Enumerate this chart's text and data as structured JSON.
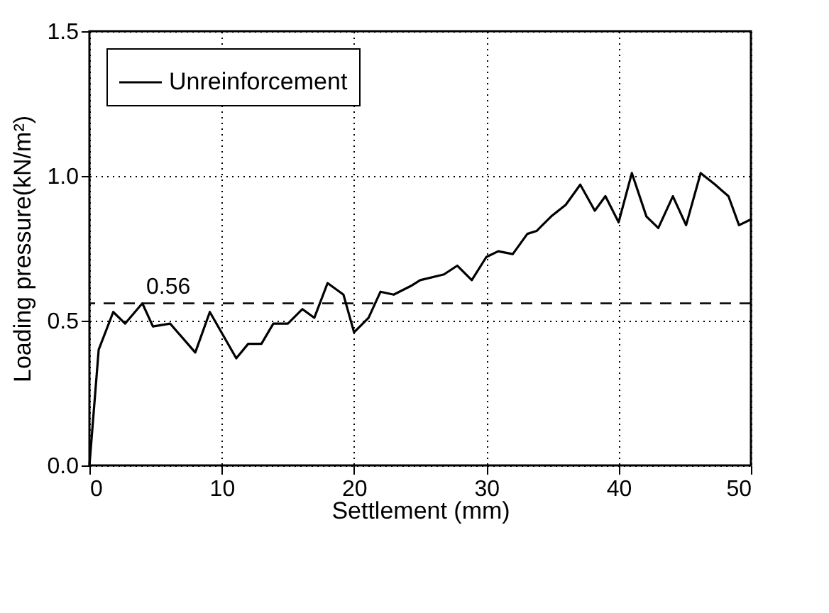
{
  "chart_data": {
    "type": "line",
    "xlabel": "Settlement   (mm)",
    "ylabel": "Loading pressure(kN/m²)",
    "x": [
      0,
      0.7,
      1.8,
      2.7,
      4.0,
      4.8,
      6.1,
      8.0,
      9.1,
      11.1,
      12.0,
      13.0,
      13.9,
      15.0,
      16.1,
      17.0,
      18.0,
      19.2,
      20.0,
      21.1,
      22.0,
      23.0,
      24.3,
      25.0,
      26.8,
      27.8,
      28.9,
      30.0,
      30.9,
      32.0,
      33.1,
      33.8,
      34.9,
      36.0,
      37.1,
      38.2,
      39.0,
      40.0,
      41.0,
      42.1,
      43.0,
      44.1,
      45.1,
      46.2,
      47.3,
      48.3,
      49.1,
      50.0
    ],
    "series": [
      {
        "name": "Unreinforcement",
        "color": "#000000",
        "values": [
          0.0,
          0.4,
          0.53,
          0.49,
          0.56,
          0.48,
          0.49,
          0.39,
          0.53,
          0.37,
          0.42,
          0.42,
          0.49,
          0.49,
          0.54,
          0.51,
          0.63,
          0.59,
          0.46,
          0.51,
          0.6,
          0.59,
          0.62,
          0.64,
          0.66,
          0.69,
          0.64,
          0.72,
          0.74,
          0.73,
          0.8,
          0.81,
          0.86,
          0.9,
          0.97,
          0.88,
          0.93,
          0.84,
          1.01,
          0.86,
          0.82,
          0.93,
          0.83,
          1.01,
          0.97,
          0.93,
          0.83,
          0.85
        ]
      }
    ],
    "xlim": [
      0,
      50
    ],
    "xticks": [
      0,
      10,
      20,
      30,
      40,
      50
    ],
    "ylim": [
      0,
      1.5
    ],
    "yticks": [
      {
        "value": 0,
        "label": "0.0"
      },
      {
        "value": 0.5,
        "label": "0.5"
      },
      {
        "value": 1,
        "label": "1.0"
      },
      {
        "value": 1.5,
        "label": "1.5"
      }
    ],
    "ref_lines": [
      {
        "axis": "y",
        "value": 0.56,
        "label": "0.56",
        "line_style": "dashed",
        "color": "#000000"
      }
    ],
    "grid": true,
    "legend": "top left",
    "line_style": "solid",
    "marker": "none"
  }
}
